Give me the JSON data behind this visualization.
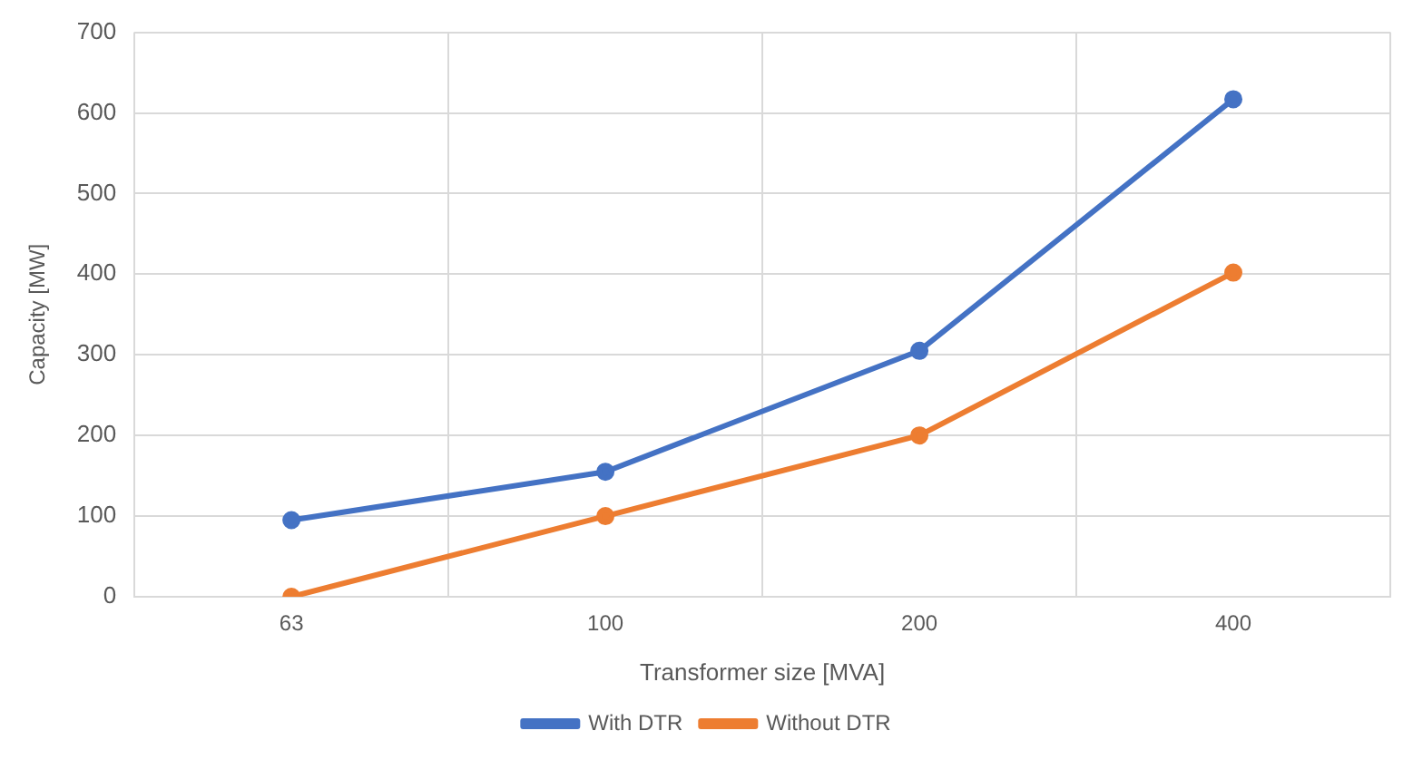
{
  "chart_data": {
    "type": "line",
    "xlabel": "Transformer size [MVA]",
    "ylabel": "Capacity [MW]",
    "categories": [
      "63",
      "100",
      "200",
      "400"
    ],
    "series": [
      {
        "name": "With DTR",
        "color": "#4472c4",
        "values": [
          95,
          155,
          305,
          617
        ]
      },
      {
        "name": "Without DTR",
        "color": "#ed7d31",
        "values": [
          0,
          100,
          200,
          402
        ]
      }
    ],
    "ylim": [
      0,
      700
    ],
    "yticks": [
      0,
      100,
      200,
      300,
      400,
      500,
      600,
      700
    ],
    "grid": true,
    "legend": "bottom",
    "marker": "circle",
    "line_style": "solid"
  }
}
